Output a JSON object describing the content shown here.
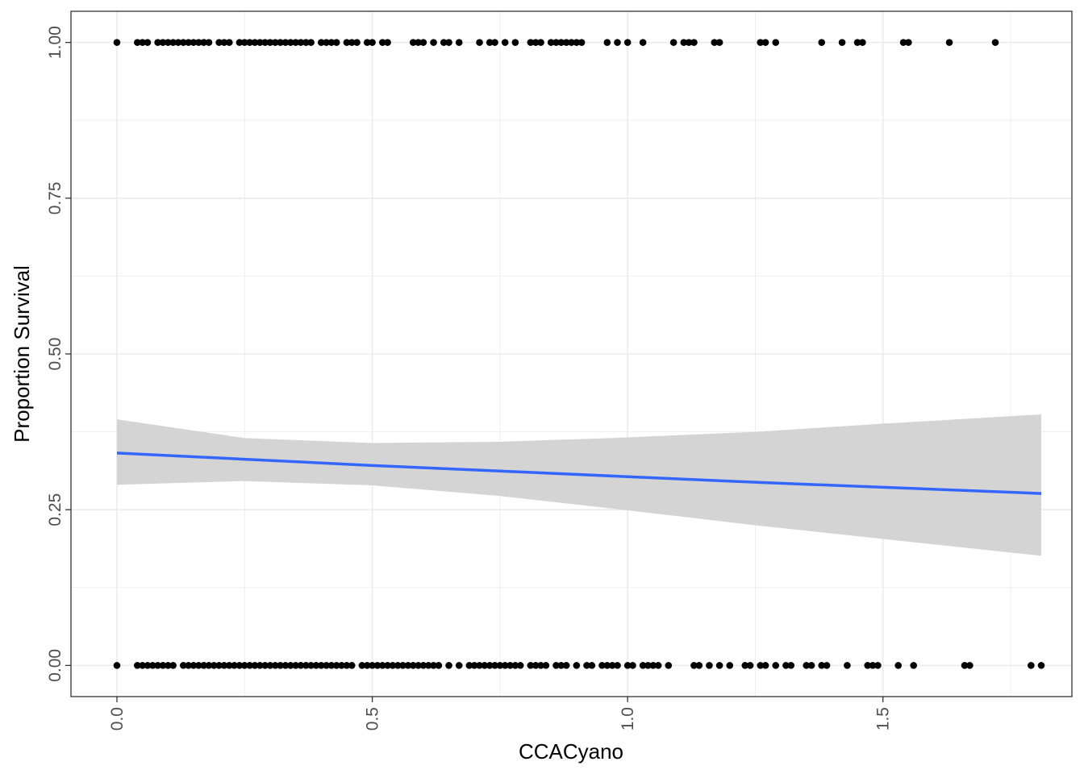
{
  "chart_data": {
    "type": "scatter",
    "title": "",
    "xlabel": "CCACyano",
    "ylabel": "Proportion Survival",
    "xlim": [
      -0.09,
      1.87
    ],
    "ylim": [
      -0.05,
      1.05
    ],
    "x_ticks": [
      0.0,
      0.5,
      1.0,
      1.5
    ],
    "x_tick_labels": [
      "0.0",
      "0.5",
      "1.0",
      "1.5"
    ],
    "y_ticks": [
      0.0,
      0.25,
      0.5,
      0.75,
      1.0
    ],
    "y_tick_labels": [
      "0.00",
      "0.25",
      "0.50",
      "0.75",
      "1.00"
    ],
    "grid": true,
    "legend": "none",
    "colors": {
      "points": "#000000",
      "fit_line": "#3366ff",
      "ribbon": "#d4d4d4",
      "grid": "#ebebeb",
      "panel_border": "#333333"
    },
    "series": [
      {
        "x": [
          0.0,
          0.04,
          0.05,
          0.06,
          0.08,
          0.09,
          0.1,
          0.11,
          0.12,
          0.13,
          0.14,
          0.15,
          0.16,
          0.17,
          0.18,
          0.2,
          0.21,
          0.22,
          0.24,
          0.25,
          0.26,
          0.27,
          0.28,
          0.29,
          0.3,
          0.31,
          0.32,
          0.33,
          0.34,
          0.35,
          0.36,
          0.37,
          0.38,
          0.4,
          0.41,
          0.42,
          0.43,
          0.45,
          0.46,
          0.47,
          0.49,
          0.5,
          0.52,
          0.53,
          0.58,
          0.59,
          0.6,
          0.62,
          0.64,
          0.65,
          0.67,
          0.71,
          0.73,
          0.74,
          0.76,
          0.78,
          0.81,
          0.82,
          0.83,
          0.85,
          0.86,
          0.87,
          0.88,
          0.89,
          0.9,
          0.91,
          0.96,
          0.98,
          1.0,
          1.03,
          1.09,
          1.11,
          1.12,
          1.13,
          1.17,
          1.18,
          1.26,
          1.27,
          1.29,
          1.38,
          1.42,
          1.45,
          1.46,
          1.54,
          1.55,
          1.63,
          1.72
        ],
        "y": [
          1,
          1,
          1,
          1,
          1,
          1,
          1,
          1,
          1,
          1,
          1,
          1,
          1,
          1,
          1,
          1,
          1,
          1,
          1,
          1,
          1,
          1,
          1,
          1,
          1,
          1,
          1,
          1,
          1,
          1,
          1,
          1,
          1,
          1,
          1,
          1,
          1,
          1,
          1,
          1,
          1,
          1,
          1,
          1,
          1,
          1,
          1,
          1,
          1,
          1,
          1,
          1,
          1,
          1,
          1,
          1,
          1,
          1,
          1,
          1,
          1,
          1,
          1,
          1,
          1,
          1,
          1,
          1,
          1,
          1,
          1,
          1,
          1,
          1,
          1,
          1,
          1,
          1,
          1,
          1,
          1,
          1,
          1,
          1,
          1,
          1,
          1
        ]
      },
      {
        "x": [
          0.0,
          0.04,
          0.05,
          0.06,
          0.07,
          0.08,
          0.09,
          0.1,
          0.11,
          0.13,
          0.14,
          0.15,
          0.16,
          0.17,
          0.18,
          0.19,
          0.2,
          0.21,
          0.22,
          0.23,
          0.24,
          0.25,
          0.26,
          0.27,
          0.28,
          0.29,
          0.3,
          0.31,
          0.32,
          0.33,
          0.34,
          0.35,
          0.36,
          0.37,
          0.38,
          0.39,
          0.4,
          0.41,
          0.42,
          0.43,
          0.44,
          0.45,
          0.46,
          0.48,
          0.49,
          0.5,
          0.51,
          0.52,
          0.53,
          0.54,
          0.55,
          0.56,
          0.57,
          0.58,
          0.59,
          0.6,
          0.61,
          0.62,
          0.63,
          0.65,
          0.67,
          0.69,
          0.7,
          0.71,
          0.72,
          0.73,
          0.74,
          0.75,
          0.76,
          0.77,
          0.78,
          0.79,
          0.81,
          0.82,
          0.83,
          0.84,
          0.86,
          0.87,
          0.88,
          0.9,
          0.92,
          0.93,
          0.95,
          0.96,
          0.97,
          0.98,
          1.0,
          1.01,
          1.03,
          1.04,
          1.05,
          1.06,
          1.08,
          1.13,
          1.14,
          1.16,
          1.18,
          1.2,
          1.23,
          1.24,
          1.26,
          1.27,
          1.29,
          1.31,
          1.32,
          1.35,
          1.36,
          1.38,
          1.39,
          1.43,
          1.47,
          1.48,
          1.49,
          1.53,
          1.56,
          1.66,
          1.67,
          1.79,
          1.81
        ],
        "y": [
          0,
          0,
          0,
          0,
          0,
          0,
          0,
          0,
          0,
          0,
          0,
          0,
          0,
          0,
          0,
          0,
          0,
          0,
          0,
          0,
          0,
          0,
          0,
          0,
          0,
          0,
          0,
          0,
          0,
          0,
          0,
          0,
          0,
          0,
          0,
          0,
          0,
          0,
          0,
          0,
          0,
          0,
          0,
          0,
          0,
          0,
          0,
          0,
          0,
          0,
          0,
          0,
          0,
          0,
          0,
          0,
          0,
          0,
          0,
          0,
          0,
          0,
          0,
          0,
          0,
          0,
          0,
          0,
          0,
          0,
          0,
          0,
          0,
          0,
          0,
          0,
          0,
          0,
          0,
          0,
          0,
          0,
          0,
          0,
          0,
          0,
          0,
          0,
          0,
          0,
          0,
          0,
          0,
          0,
          0,
          0,
          0,
          0,
          0,
          0,
          0,
          0,
          0,
          0,
          0,
          0,
          0,
          0,
          0,
          0,
          0,
          0,
          0,
          0,
          0,
          0,
          0,
          0,
          0
        ]
      }
    ],
    "fit": {
      "x": [
        0.0,
        0.25,
        0.5,
        0.75,
        1.0,
        1.25,
        1.5,
        1.81
      ],
      "y": [
        0.341,
        0.331,
        0.321,
        0.312,
        0.303,
        0.294,
        0.286,
        0.276
      ],
      "lower": [
        0.29,
        0.296,
        0.289,
        0.272,
        0.249,
        0.225,
        0.203,
        0.176
      ],
      "upper": [
        0.395,
        0.365,
        0.357,
        0.359,
        0.366,
        0.375,
        0.388,
        0.403
      ]
    }
  }
}
